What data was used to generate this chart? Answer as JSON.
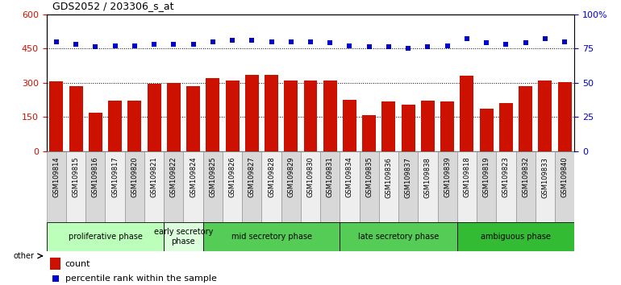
{
  "title": "GDS2052 / 203306_s_at",
  "samples": [
    "GSM109814",
    "GSM109815",
    "GSM109816",
    "GSM109817",
    "GSM109820",
    "GSM109821",
    "GSM109822",
    "GSM109824",
    "GSM109825",
    "GSM109826",
    "GSM109827",
    "GSM109828",
    "GSM109829",
    "GSM109830",
    "GSM109831",
    "GSM109834",
    "GSM109835",
    "GSM109836",
    "GSM109837",
    "GSM109838",
    "GSM109839",
    "GSM109818",
    "GSM109819",
    "GSM109823",
    "GSM109832",
    "GSM109833",
    "GSM109840"
  ],
  "counts": [
    305,
    285,
    168,
    220,
    222,
    295,
    300,
    283,
    320,
    308,
    333,
    333,
    308,
    308,
    308,
    225,
    158,
    218,
    205,
    220,
    218,
    330,
    185,
    210,
    285,
    310,
    302
  ],
  "percentiles": [
    80,
    78,
    76,
    77,
    77,
    78,
    78,
    78,
    80,
    81,
    81,
    80,
    80,
    80,
    79,
    77,
    76,
    76,
    75,
    76,
    77,
    82,
    79,
    78,
    79,
    82,
    80
  ],
  "phases": [
    {
      "label": "proliferative phase",
      "start": 0,
      "end": 6,
      "color": "#bbffbb"
    },
    {
      "label": "early secretory\nphase",
      "start": 6,
      "end": 8,
      "color": "#ddfedd"
    },
    {
      "label": "mid secretory phase",
      "start": 8,
      "end": 15,
      "color": "#55cc55"
    },
    {
      "label": "late secretory phase",
      "start": 15,
      "end": 21,
      "color": "#55cc55"
    },
    {
      "label": "ambiguous phase",
      "start": 21,
      "end": 27,
      "color": "#33bb33"
    }
  ],
  "bar_color": "#cc1100",
  "dot_color": "#0000cc",
  "left_ylim": [
    0,
    600
  ],
  "right_ylim": [
    0,
    100
  ],
  "left_yticks": [
    0,
    150,
    300,
    450,
    600
  ],
  "right_yticks": [
    0,
    25,
    50,
    75,
    100
  ],
  "grid_values": [
    150,
    300,
    450
  ],
  "title_fontsize": 9,
  "legend_count_label": "count",
  "legend_pct_label": "percentile rank within the sample",
  "other_label": "other"
}
